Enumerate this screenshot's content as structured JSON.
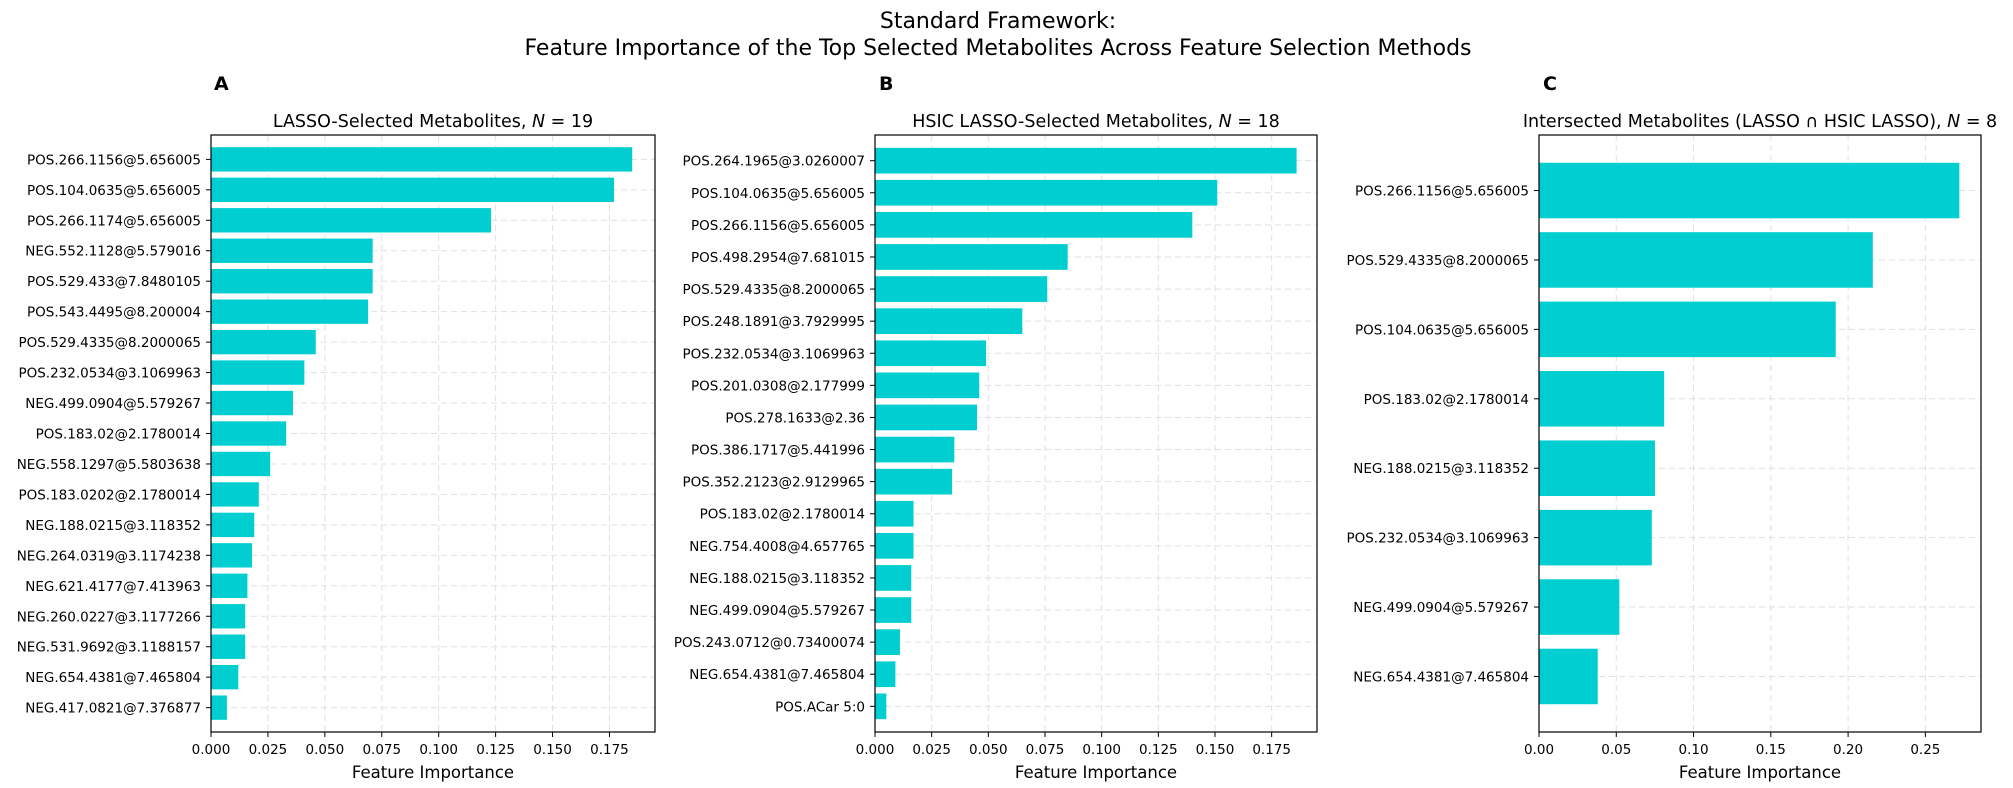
{
  "figure": {
    "title_line1": "Standard Framework:",
    "title_line2": "Feature Importance of the Top Selected Metabolites Across Feature Selection Methods"
  },
  "style": {
    "bar_color": "#00CED1",
    "grid_color": "#e0e0e0"
  },
  "chart_data": [
    {
      "type": "bar",
      "orientation": "horizontal",
      "panel_letter": "A",
      "title_prefix": "LASSO-Selected Metabolites, ",
      "title_var": "N",
      "title_suffix": " = 19",
      "xlabel": "Feature Importance",
      "xlim": [
        0,
        0.195
      ],
      "xticks": [
        "0.000",
        "0.025",
        "0.050",
        "0.075",
        "0.100",
        "0.125",
        "0.150",
        "0.175"
      ],
      "grid": true,
      "categories": [
        "POS.266.1156@5.656005",
        "POS.104.0635@5.656005",
        "POS.266.1174@5.656005",
        "NEG.552.1128@5.579016",
        "POS.529.433@7.8480105",
        "POS.543.4495@8.200004",
        "POS.529.4335@8.2000065",
        "POS.232.0534@3.1069963",
        "NEG.499.0904@5.579267",
        "POS.183.02@2.1780014",
        "NEG.558.1297@5.5803638",
        "POS.183.0202@2.1780014",
        "NEG.188.0215@3.118352",
        "NEG.264.0319@3.1174238",
        "NEG.621.4177@7.413963",
        "NEG.260.0227@3.1177266",
        "NEG.531.9692@3.1188157",
        "NEG.654.4381@7.465804",
        "NEG.417.0821@7.376877"
      ],
      "values": [
        0.185,
        0.177,
        0.123,
        0.071,
        0.071,
        0.069,
        0.046,
        0.041,
        0.036,
        0.033,
        0.026,
        0.021,
        0.019,
        0.018,
        0.016,
        0.015,
        0.015,
        0.012,
        0.007
      ]
    },
    {
      "type": "bar",
      "orientation": "horizontal",
      "panel_letter": "B",
      "title_prefix": "HSIC LASSO-Selected Metabolites, ",
      "title_var": "N",
      "title_suffix": " = 18",
      "xlabel": "Feature Importance",
      "xlim": [
        0,
        0.195
      ],
      "xticks": [
        "0.000",
        "0.025",
        "0.050",
        "0.075",
        "0.100",
        "0.125",
        "0.150",
        "0.175"
      ],
      "grid": true,
      "categories": [
        "POS.264.1965@3.0260007",
        "POS.104.0635@5.656005",
        "POS.266.1156@5.656005",
        "POS.498.2954@7.681015",
        "POS.529.4335@8.2000065",
        "POS.248.1891@3.7929995",
        "POS.232.0534@3.1069963",
        "POS.201.0308@2.177999",
        "POS.278.1633@2.36",
        "POS.386.1717@5.441996",
        "POS.352.2123@2.9129965",
        "POS.183.02@2.1780014",
        "NEG.754.4008@4.657765",
        "NEG.188.0215@3.118352",
        "NEG.499.0904@5.579267",
        "POS.243.0712@0.73400074",
        "NEG.654.4381@7.465804",
        "POS.ACar 5:0"
      ],
      "values": [
        0.186,
        0.151,
        0.14,
        0.085,
        0.076,
        0.065,
        0.049,
        0.046,
        0.045,
        0.035,
        0.034,
        0.017,
        0.017,
        0.016,
        0.016,
        0.011,
        0.009,
        0.005
      ]
    },
    {
      "type": "bar",
      "orientation": "horizontal",
      "panel_letter": "C",
      "title_prefix": "Intersected Metabolites (LASSO ∩ HSIC LASSO), ",
      "title_var": "N",
      "title_suffix": " = 8",
      "xlabel": "Feature Importance",
      "xlim": [
        0,
        0.286
      ],
      "xticks": [
        "0.00",
        "0.05",
        "0.10",
        "0.15",
        "0.20",
        "0.25"
      ],
      "grid": true,
      "categories": [
        "POS.266.1156@5.656005",
        "POS.529.4335@8.2000065",
        "POS.104.0635@5.656005",
        "POS.183.02@2.1780014",
        "NEG.188.0215@3.118352",
        "POS.232.0534@3.1069963",
        "NEG.499.0904@5.579267",
        "NEG.654.4381@7.465804"
      ],
      "values": [
        0.272,
        0.216,
        0.192,
        0.081,
        0.075,
        0.073,
        0.052,
        0.038
      ]
    }
  ]
}
